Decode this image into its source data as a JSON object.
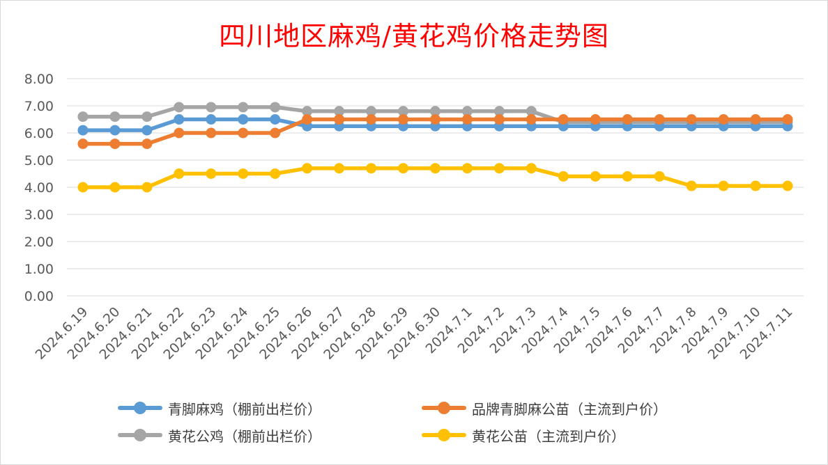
{
  "chart_data": {
    "type": "line",
    "title": "四川地区麻鸡/黄花鸡价格走势图",
    "xlabel": "",
    "ylabel": "",
    "ylim": [
      0,
      8
    ],
    "y_ticks": [
      "0.00",
      "1.00",
      "2.00",
      "3.00",
      "4.00",
      "5.00",
      "6.00",
      "7.00",
      "8.00"
    ],
    "grid": true,
    "legend_position": "bottom",
    "categories": [
      "2024.6.19",
      "2024.6.20",
      "2024.6.21",
      "2024.6.22",
      "2024.6.23",
      "2024.6.24",
      "2024.6.25",
      "2024.6.26",
      "2024.6.27",
      "2024.6.28",
      "2024.6.29",
      "2024.6.30",
      "2024.7.1",
      "2024.7.2",
      "2024.7.3",
      "2024.7.4",
      "2024.7.5",
      "2024.7.6",
      "2024.7.7",
      "2024.7.8",
      "2024.7.9",
      "2024.7.10",
      "2024.7.11"
    ],
    "series": [
      {
        "name": "青脚麻鸡（棚前出栏价）",
        "color": "#5b9bd5",
        "values": [
          6.1,
          6.1,
          6.1,
          6.5,
          6.5,
          6.5,
          6.5,
          6.25,
          6.25,
          6.25,
          6.25,
          6.25,
          6.25,
          6.25,
          6.25,
          6.25,
          6.25,
          6.25,
          6.25,
          6.25,
          6.25,
          6.25,
          6.25
        ]
      },
      {
        "name": "品牌青脚麻公苗（主流到户价）",
        "color": "#ed7d31",
        "values": [
          5.6,
          5.6,
          5.6,
          6.0,
          6.0,
          6.0,
          6.0,
          6.5,
          6.5,
          6.5,
          6.5,
          6.5,
          6.5,
          6.5,
          6.5,
          6.5,
          6.5,
          6.5,
          6.5,
          6.5,
          6.5,
          6.5,
          6.5
        ]
      },
      {
        "name": "黄花公鸡（棚前出栏价）",
        "color": "#a5a5a5",
        "values": [
          6.6,
          6.6,
          6.6,
          6.95,
          6.95,
          6.95,
          6.95,
          6.8,
          6.8,
          6.8,
          6.8,
          6.8,
          6.8,
          6.8,
          6.8,
          6.4,
          6.4,
          6.4,
          6.4,
          6.4,
          6.4,
          6.4,
          6.4
        ]
      },
      {
        "name": "黄花公苗（主流到户价）",
        "color": "#ffc000",
        "values": [
          4.0,
          4.0,
          4.0,
          4.5,
          4.5,
          4.5,
          4.5,
          4.7,
          4.7,
          4.7,
          4.7,
          4.7,
          4.7,
          4.7,
          4.7,
          4.4,
          4.4,
          4.4,
          4.4,
          4.05,
          4.05,
          4.05,
          4.05
        ]
      }
    ]
  }
}
